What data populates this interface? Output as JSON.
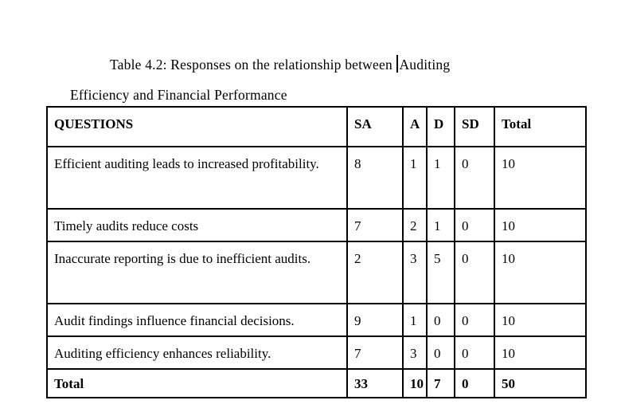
{
  "page": {
    "background": "#ffffff",
    "text_color": "#000000",
    "table_border_color": "#000000"
  },
  "caption": {
    "line1_prefix": "Table 4.2: Responses on the relationship between ",
    "line1_suffix": "Auditing",
    "line2": "Efficiency and Financial Performance"
  },
  "table": {
    "headers": [
      "QUESTIONS",
      "SA",
      "A",
      "D",
      "SD",
      "Total"
    ],
    "rows": [
      [
        "Efficient auditing leads to increased profitability.",
        "8",
        "1",
        "1",
        "0",
        "10"
      ],
      [
        "Timely audits reduce costs",
        "7",
        "2",
        "1",
        "0",
        "10"
      ],
      [
        "Inaccurate reporting is due to inefficient audits.",
        "2",
        "3",
        "5",
        "0",
        "10"
      ],
      [
        "Audit findings influence financial decisions.",
        "9",
        "1",
        "0",
        "0",
        "10"
      ],
      [
        "Auditing efficiency enhances reliability.",
        "7",
        "3",
        "0",
        "0",
        "10"
      ]
    ],
    "total_row": [
      "Total",
      "33",
      "10",
      "7",
      "0",
      "50"
    ]
  }
}
